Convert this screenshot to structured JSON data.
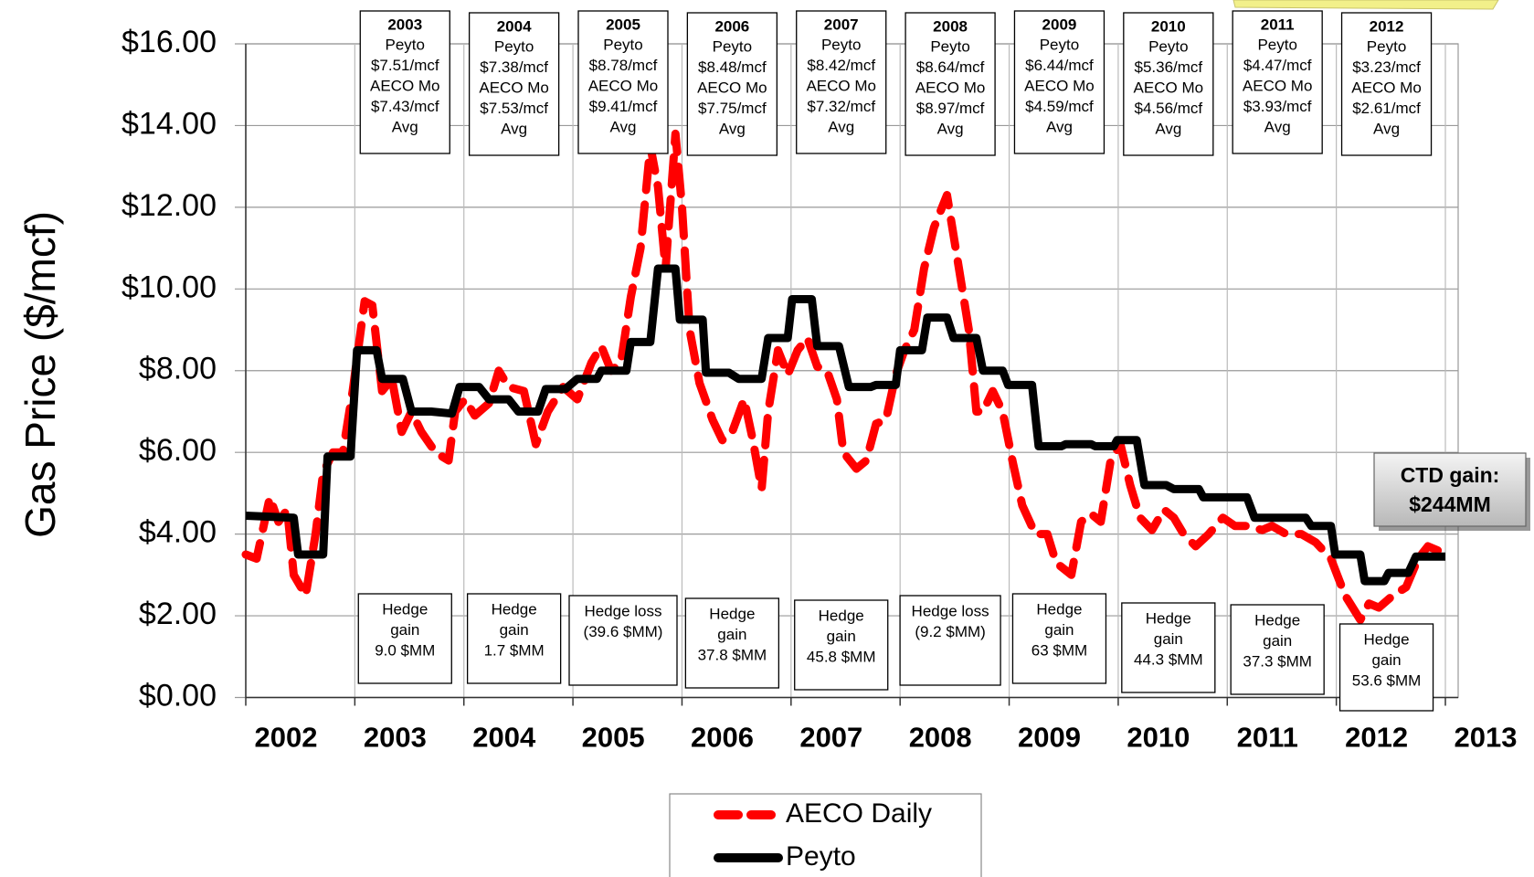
{
  "chart_data": {
    "type": "line",
    "y_label": "Gas Price ($/mcf)",
    "xlim": [
      2002,
      2013
    ],
    "xticks": [
      2002,
      2003,
      2004,
      2005,
      2006,
      2007,
      2008,
      2009,
      2010,
      2011,
      2012,
      2013
    ],
    "ylim": [
      0,
      16
    ],
    "yticks": [
      {
        "value": 0,
        "label": "$0.00"
      },
      {
        "value": 2,
        "label": "$2.00"
      },
      {
        "value": 4,
        "label": "$4.00"
      },
      {
        "value": 6,
        "label": "$6.00"
      },
      {
        "value": 8,
        "label": "$8.00"
      },
      {
        "value": 10,
        "label": "$10.00"
      },
      {
        "value": 12,
        "label": "$12.00"
      },
      {
        "value": 14,
        "label": "$14.00"
      },
      {
        "value": 16,
        "label": "$16.00"
      }
    ],
    "grid": true,
    "series": [
      {
        "name": "AECO Daily",
        "color": "#ff0000",
        "dashed": true,
        "x": [
          2002.0,
          2002.1,
          2002.22,
          2002.3,
          2002.38,
          2002.44,
          2002.55,
          2002.64,
          2002.71,
          2002.8,
          2002.89,
          2002.98,
          2003.09,
          2003.16,
          2003.25,
          2003.34,
          2003.43,
          2003.52,
          2003.61,
          2003.74,
          2003.86,
          2003.92,
          2004.01,
          2004.1,
          2004.23,
          2004.32,
          2004.41,
          2004.55,
          2004.66,
          2004.77,
          2004.91,
          2005.04,
          2005.17,
          2005.26,
          2005.35,
          2005.44,
          2005.53,
          2005.62,
          2005.71,
          2005.78,
          2005.85,
          2005.94,
          2006.0,
          2006.07,
          2006.16,
          2006.28,
          2006.37,
          2006.46,
          2006.57,
          2006.65,
          2006.73,
          2006.79,
          2006.88,
          2006.97,
          2007.06,
          2007.15,
          2007.24,
          2007.33,
          2007.42,
          2007.48,
          2007.6,
          2007.69,
          2007.78,
          2007.87,
          2007.96,
          2008.04,
          2008.13,
          2008.22,
          2008.31,
          2008.43,
          2008.54,
          2008.63,
          2008.7,
          2008.76,
          2008.85,
          2008.94,
          2009.03,
          2009.12,
          2009.24,
          2009.35,
          2009.43,
          2009.57,
          2009.66,
          2009.75,
          2009.84,
          2009.93,
          2010.02,
          2010.11,
          2010.2,
          2010.31,
          2010.42,
          2010.51,
          2010.6,
          2010.71,
          2010.83,
          2010.96,
          2011.07,
          2011.18,
          2011.32,
          2011.41,
          2011.54,
          2011.68,
          2011.81,
          2011.95,
          2012.08,
          2012.22,
          2012.3,
          2012.39,
          2012.52,
          2012.64,
          2012.75,
          2012.84,
          2012.93
        ],
        "values": [
          3.5,
          3.4,
          4.9,
          4.3,
          4.6,
          3.0,
          2.5,
          4.0,
          5.5,
          6.0,
          6.0,
          7.5,
          9.7,
          9.6,
          7.5,
          7.8,
          6.5,
          7.0,
          6.5,
          6.0,
          5.8,
          7.0,
          7.3,
          6.9,
          7.2,
          8.0,
          7.6,
          7.5,
          6.2,
          7.0,
          7.6,
          7.3,
          8.2,
          8.6,
          8.0,
          8.2,
          9.8,
          11.0,
          13.5,
          12.5,
          10.5,
          13.8,
          12.0,
          9.0,
          7.7,
          6.8,
          6.3,
          6.5,
          7.3,
          6.3,
          5.1,
          7.0,
          8.5,
          7.9,
          8.5,
          8.8,
          8.1,
          8.0,
          7.3,
          6.0,
          5.6,
          5.8,
          6.7,
          6.8,
          7.9,
          8.5,
          9.0,
          10.5,
          11.5,
          12.3,
          10.5,
          9.0,
          7.0,
          7.0,
          7.5,
          7.0,
          5.8,
          4.7,
          4.0,
          4.0,
          3.3,
          3.0,
          4.3,
          4.5,
          4.3,
          5.8,
          6.2,
          5.2,
          4.4,
          4.1,
          4.6,
          4.4,
          4.0,
          3.7,
          4.0,
          4.4,
          4.2,
          4.2,
          4.1,
          4.2,
          4.0,
          4.0,
          3.8,
          3.4,
          2.5,
          1.9,
          2.3,
          2.2,
          2.5,
          2.7,
          3.4,
          3.7,
          3.6
        ]
      },
      {
        "name": "Peyto",
        "color": "#000000",
        "dashed": false,
        "x": [
          2002.0,
          2002.44,
          2002.48,
          2002.71,
          2002.75,
          2002.96,
          2003.02,
          2003.2,
          2003.25,
          2003.44,
          2003.52,
          2003.7,
          2003.89,
          2003.96,
          2004.14,
          2004.23,
          2004.41,
          2004.5,
          2004.68,
          2004.75,
          2004.93,
          2005.04,
          2005.22,
          2005.26,
          2005.49,
          2005.53,
          2005.71,
          2005.78,
          2005.94,
          2005.98,
          2006.19,
          2006.22,
          2006.43,
          2006.52,
          2006.73,
          2006.79,
          2006.97,
          2007.01,
          2007.19,
          2007.24,
          2007.44,
          2007.53,
          2007.73,
          2007.78,
          2007.96,
          2008.0,
          2008.2,
          2008.25,
          2008.43,
          2008.49,
          2008.7,
          2008.76,
          2008.94,
          2008.99,
          2009.21,
          2009.27,
          2009.48,
          2009.52,
          2009.75,
          2009.79,
          2009.96,
          2009.99,
          2010.17,
          2010.24,
          2010.44,
          2010.51,
          2010.74,
          2010.78,
          2011.18,
          2011.25,
          2011.72,
          2011.77,
          2011.95,
          2011.99,
          2012.22,
          2012.26,
          2012.44,
          2012.48,
          2012.66,
          2012.73,
          2013.0
        ],
        "values": [
          4.45,
          4.4,
          3.5,
          3.5,
          5.9,
          5.9,
          8.5,
          8.5,
          7.8,
          7.8,
          7.0,
          7.0,
          6.95,
          7.6,
          7.6,
          7.3,
          7.3,
          7.0,
          7.0,
          7.55,
          7.55,
          7.8,
          7.8,
          8.0,
          8.0,
          8.7,
          8.7,
          10.5,
          10.5,
          9.25,
          9.25,
          7.95,
          7.95,
          7.8,
          7.8,
          8.8,
          8.8,
          9.75,
          9.75,
          8.6,
          8.6,
          7.6,
          7.6,
          7.65,
          7.65,
          8.5,
          8.5,
          9.3,
          9.3,
          8.8,
          8.8,
          8.0,
          8.0,
          7.65,
          7.65,
          6.15,
          6.15,
          6.2,
          6.2,
          6.15,
          6.15,
          6.3,
          6.3,
          5.2,
          5.2,
          5.1,
          5.1,
          4.9,
          4.9,
          4.4,
          4.4,
          4.2,
          4.2,
          3.5,
          3.5,
          2.85,
          2.85,
          3.05,
          3.05,
          3.45,
          3.45
        ]
      }
    ],
    "year_boxes": [
      {
        "year": "2003",
        "lines": [
          "Peyto",
          "$7.51/mcf",
          "AECO Mo",
          "$7.43/mcf",
          "Avg"
        ]
      },
      {
        "year": "2004",
        "lines": [
          "Peyto",
          "$7.38/mcf",
          "AECO Mo",
          "$7.53/mcf",
          "Avg"
        ]
      },
      {
        "year": "2005",
        "lines": [
          "Peyto",
          "$8.78/mcf",
          "AECO Mo",
          "$9.41/mcf",
          "Avg"
        ]
      },
      {
        "year": "2006",
        "lines": [
          "Peyto",
          "$8.48/mcf",
          "AECO Mo",
          "$7.75/mcf",
          "Avg"
        ]
      },
      {
        "year": "2007",
        "lines": [
          "Peyto",
          "$8.42/mcf",
          "AECO Mo",
          "$7.32/mcf",
          "Avg"
        ]
      },
      {
        "year": "2008",
        "lines": [
          "Peyto",
          "$8.64/mcf",
          "AECO Mo",
          "$8.97/mcf",
          "Avg"
        ]
      },
      {
        "year": "2009",
        "lines": [
          "Peyto",
          "$6.44/mcf",
          "AECO Mo",
          "$4.59/mcf",
          "Avg"
        ]
      },
      {
        "year": "2010",
        "lines": [
          "Peyto",
          "$5.36/mcf",
          "AECO Mo",
          "$4.56/mcf",
          "Avg"
        ]
      },
      {
        "year": "2011",
        "lines": [
          "Peyto",
          "$4.47/mcf",
          "AECO Mo",
          "$3.93/mcf",
          "Avg"
        ]
      },
      {
        "year": "2012",
        "lines": [
          "Peyto",
          "$3.23/mcf",
          "AECO Mo",
          "$2.61/mcf",
          "Avg"
        ]
      }
    ],
    "hedge_boxes": [
      {
        "lines": [
          "Hedge",
          "gain",
          "9.0 $MM"
        ]
      },
      {
        "lines": [
          "Hedge",
          "gain",
          "1.7 $MM"
        ]
      },
      {
        "lines": [
          "Hedge loss",
          "(39.6 $MM)"
        ]
      },
      {
        "lines": [
          "Hedge",
          "gain",
          "37.8 $MM"
        ]
      },
      {
        "lines": [
          "Hedge",
          "gain",
          "45.8 $MM"
        ]
      },
      {
        "lines": [
          "Hedge loss",
          "(9.2 $MM)"
        ]
      },
      {
        "lines": [
          "Hedge",
          "gain",
          "63 $MM"
        ]
      },
      {
        "lines": [
          "Hedge",
          "gain",
          "44.3 $MM"
        ]
      },
      {
        "lines": [
          "Hedge",
          "gain",
          "37.3 $MM"
        ]
      },
      {
        "lines": [
          "Hedge",
          "gain",
          "53.6 $MM"
        ]
      }
    ],
    "callout": {
      "lines": [
        "CTD gain:",
        "$244MM"
      ]
    }
  }
}
